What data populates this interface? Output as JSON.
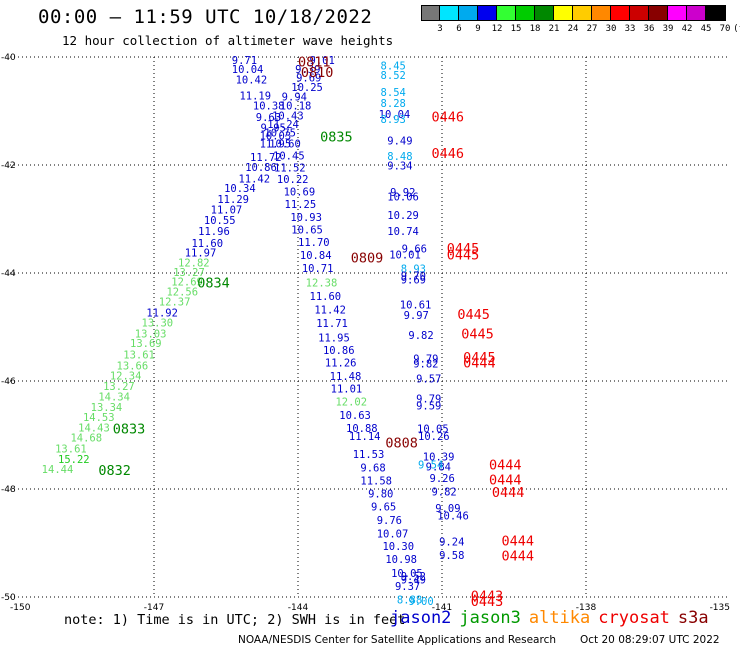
{
  "header": {
    "title": "00:00 – 11:59 UTC 10/18/2022",
    "subtitle": "12 hour collection of altimeter wave heights"
  },
  "colorbar": {
    "labels": [
      "3",
      "6",
      "9",
      "12",
      "15",
      "18",
      "21",
      "24",
      "27",
      "30",
      "33",
      "36",
      "39",
      "42",
      "45",
      "70",
      "(ft)"
    ],
    "colors": [
      "#777777",
      "#00e5ff",
      "#00aaee",
      "#0000ee",
      "#33ff33",
      "#00cc00",
      "#008800",
      "#ffff00",
      "#ffcc00",
      "#ff8800",
      "#ff0000",
      "#cc0000",
      "#880000",
      "#ff00ff",
      "#cc00cc",
      "#000000"
    ]
  },
  "chart_data": {
    "type": "scatter",
    "xlim": [
      -150,
      -135
    ],
    "ylim": [
      -50,
      -40
    ],
    "x_ticks": [
      "-150",
      "-147",
      "-144",
      "-141",
      "-138",
      "-135"
    ],
    "y_ticks": [
      "-40",
      "-42",
      "-44",
      "-46",
      "-48",
      "-50"
    ],
    "grid": true,
    "points": [
      {
        "x": -145.38,
        "y": -40.06,
        "t": "9.71",
        "c": "#0000cc"
      },
      {
        "x": -145.38,
        "y": -40.22,
        "t": "10.04",
        "c": "#0000cc"
      },
      {
        "x": -145.3,
        "y": -40.42,
        "t": "10.42",
        "c": "#0000cc"
      },
      {
        "x": -145.22,
        "y": -40.71,
        "t": "11.19",
        "c": "#0000cc"
      },
      {
        "x": -144.94,
        "y": -40.9,
        "t": "10.38",
        "c": "#0000cc"
      },
      {
        "x": -144.88,
        "y": -41.11,
        "t": "9.63",
        "c": "#0000cc"
      },
      {
        "x": -144.78,
        "y": -41.31,
        "t": "9.95",
        "c": "#0000cc"
      },
      {
        "x": -144.8,
        "y": -41.45,
        "t": "10.03",
        "c": "#0000cc"
      },
      {
        "x": -144.8,
        "y": -41.6,
        "t": "11.95",
        "c": "#0000cc"
      },
      {
        "x": -145.0,
        "y": -41.85,
        "t": "11.72",
        "c": "#0000cc"
      },
      {
        "x": -145.1,
        "y": -42.04,
        "t": "10.86",
        "c": "#0000cc"
      },
      {
        "x": -145.24,
        "y": -42.25,
        "t": "11.42",
        "c": "#0000cc"
      },
      {
        "x": -145.54,
        "y": -42.43,
        "t": "10.34",
        "c": "#0000cc"
      },
      {
        "x": -145.68,
        "y": -42.63,
        "t": "11.29",
        "c": "#0000cc"
      },
      {
        "x": -145.82,
        "y": -42.82,
        "t": "11.07",
        "c": "#0000cc"
      },
      {
        "x": -145.96,
        "y": -43.02,
        "t": "10.55",
        "c": "#0000cc"
      },
      {
        "x": -146.08,
        "y": -43.22,
        "t": "11.96",
        "c": "#0000cc"
      },
      {
        "x": -146.22,
        "y": -43.44,
        "t": "11.60",
        "c": "#0000cc"
      },
      {
        "x": -146.36,
        "y": -43.62,
        "t": "11.97",
        "c": "#0000cc"
      },
      {
        "x": -146.5,
        "y": -43.81,
        "t": "12.82",
        "c": "#66dd66"
      },
      {
        "x": -146.6,
        "y": -43.98,
        "t": "13.27",
        "c": "#66dd66"
      },
      {
        "x": -146.64,
        "y": -44.16,
        "t": "12.69",
        "c": "#66dd66"
      },
      {
        "x": -146.74,
        "y": -44.34,
        "t": "12.56",
        "c": "#66dd66"
      },
      {
        "x": -146.9,
        "y": -44.53,
        "t": "12.37",
        "c": "#66dd66"
      },
      {
        "x": -147.16,
        "y": -44.73,
        "t": "11.92",
        "c": "#0000cc"
      },
      {
        "x": -147.26,
        "y": -44.92,
        "t": "13.30",
        "c": "#66dd66"
      },
      {
        "x": -147.4,
        "y": -45.12,
        "t": "13.03",
        "c": "#66dd66"
      },
      {
        "x": -147.5,
        "y": -45.3,
        "t": "13.69",
        "c": "#66dd66"
      },
      {
        "x": -147.64,
        "y": -45.51,
        "t": "13.61",
        "c": "#66dd66"
      },
      {
        "x": -147.78,
        "y": -45.71,
        "t": "13.66",
        "c": "#66dd66"
      },
      {
        "x": -147.92,
        "y": -45.9,
        "t": "12.34",
        "c": "#66dd66"
      },
      {
        "x": -148.06,
        "y": -46.09,
        "t": "13.27",
        "c": "#66dd66"
      },
      {
        "x": -148.16,
        "y": -46.29,
        "t": "14.34",
        "c": "#66dd66"
      },
      {
        "x": -148.32,
        "y": -46.48,
        "t": "13.34",
        "c": "#66dd66"
      },
      {
        "x": -148.48,
        "y": -46.67,
        "t": "14.53",
        "c": "#66dd66"
      },
      {
        "x": -148.58,
        "y": -46.86,
        "t": "14.43",
        "c": "#66dd66"
      },
      {
        "x": -148.74,
        "y": -47.05,
        "t": "14.68",
        "c": "#66dd66"
      },
      {
        "x": -149.06,
        "y": -47.25,
        "t": "13.61",
        "c": "#66dd66"
      },
      {
        "x": -149.0,
        "y": -47.44,
        "t": "15.22",
        "c": "#22cc22"
      },
      {
        "x": -149.34,
        "y": -47.63,
        "t": "14.44",
        "c": "#66dd66"
      },
      {
        "x": -143.76,
        "y": -40.06,
        "t": "9.01",
        "c": "#0000cc"
      },
      {
        "x": -144.06,
        "y": -40.22,
        "t": "9.39",
        "c": "#0000cc"
      },
      {
        "x": -144.04,
        "y": -40.38,
        "t": "9.69",
        "c": "#0000cc"
      },
      {
        "x": -144.14,
        "y": -40.56,
        "t": "10.25",
        "c": "#0000cc"
      },
      {
        "x": -144.34,
        "y": -40.73,
        "t": "9.94",
        "c": "#0000cc"
      },
      {
        "x": -144.38,
        "y": -40.9,
        "t": "10.18",
        "c": "#0000cc"
      },
      {
        "x": -144.54,
        "y": -41.08,
        "t": "10.43",
        "c": "#0000cc"
      },
      {
        "x": -144.64,
        "y": -41.24,
        "t": "11.24",
        "c": "#0000cc"
      },
      {
        "x": -144.7,
        "y": -41.4,
        "t": "10.75",
        "c": "#0000cc"
      },
      {
        "x": -144.6,
        "y": -41.6,
        "t": "10.60",
        "c": "#0000cc"
      },
      {
        "x": -144.52,
        "y": -41.82,
        "t": "10.45",
        "c": "#0000cc"
      },
      {
        "x": -144.5,
        "y": -42.05,
        "t": "11.52",
        "c": "#0000cc"
      },
      {
        "x": -144.44,
        "y": -42.26,
        "t": "10.22",
        "c": "#0000cc"
      },
      {
        "x": -144.3,
        "y": -42.49,
        "t": "10.69",
        "c": "#0000cc"
      },
      {
        "x": -144.28,
        "y": -42.72,
        "t": "11.25",
        "c": "#0000cc"
      },
      {
        "x": -144.16,
        "y": -42.96,
        "t": "10.93",
        "c": "#0000cc"
      },
      {
        "x": -144.14,
        "y": -43.19,
        "t": "10.65",
        "c": "#0000cc"
      },
      {
        "x": -144.0,
        "y": -43.43,
        "t": "11.70",
        "c": "#0000cc"
      },
      {
        "x": -143.96,
        "y": -43.67,
        "t": "10.84",
        "c": "#0000cc"
      },
      {
        "x": -143.92,
        "y": -43.91,
        "t": "10.71",
        "c": "#0000cc"
      },
      {
        "x": -143.84,
        "y": -44.18,
        "t": "12.38",
        "c": "#66dd66"
      },
      {
        "x": -143.76,
        "y": -44.43,
        "t": "11.60",
        "c": "#0000cc"
      },
      {
        "x": -143.66,
        "y": -44.68,
        "t": "11.42",
        "c": "#0000cc"
      },
      {
        "x": -143.62,
        "y": -44.93,
        "t": "11.71",
        "c": "#0000cc"
      },
      {
        "x": -143.58,
        "y": -45.19,
        "t": "11.95",
        "c": "#0000cc"
      },
      {
        "x": -143.48,
        "y": -45.43,
        "t": "10.86",
        "c": "#0000cc"
      },
      {
        "x": -143.44,
        "y": -45.66,
        "t": "11.26",
        "c": "#0000cc"
      },
      {
        "x": -143.34,
        "y": -45.91,
        "t": "11.48",
        "c": "#0000cc"
      },
      {
        "x": -143.32,
        "y": -46.14,
        "t": "11.01",
        "c": "#0000cc"
      },
      {
        "x": -143.22,
        "y": -46.38,
        "t": "12.02",
        "c": "#66dd66"
      },
      {
        "x": -143.14,
        "y": -46.63,
        "t": "10.63",
        "c": "#0000cc"
      },
      {
        "x": -143.0,
        "y": -46.87,
        "t": "10.88",
        "c": "#0000cc"
      },
      {
        "x": -142.94,
        "y": -47.02,
        "t": "11.14",
        "c": "#0000cc"
      },
      {
        "x": -142.86,
        "y": -47.35,
        "t": "11.53",
        "c": "#0000cc"
      },
      {
        "x": -142.7,
        "y": -47.6,
        "t": "9.68",
        "c": "#0000cc"
      },
      {
        "x": -142.7,
        "y": -47.84,
        "t": "11.58",
        "c": "#0000cc"
      },
      {
        "x": -142.54,
        "y": -48.08,
        "t": "9.80",
        "c": "#0000cc"
      },
      {
        "x": -142.48,
        "y": -48.32,
        "t": "9.65",
        "c": "#0000cc"
      },
      {
        "x": -142.36,
        "y": -48.57,
        "t": "9.76",
        "c": "#0000cc"
      },
      {
        "x": -142.36,
        "y": -48.82,
        "t": "10.07",
        "c": "#0000cc"
      },
      {
        "x": -142.24,
        "y": -49.06,
        "t": "10.30",
        "c": "#0000cc"
      },
      {
        "x": -142.18,
        "y": -49.3,
        "t": "10.98",
        "c": "#0000cc"
      },
      {
        "x": -142.06,
        "y": -49.56,
        "t": "10.05",
        "c": "#0000cc"
      },
      {
        "x": -141.86,
        "y": -49.61,
        "t": "9.52",
        "c": "#0000cc"
      },
      {
        "x": -141.86,
        "y": -49.68,
        "t": "9.49",
        "c": "#0000cc"
      },
      {
        "x": -141.98,
        "y": -49.8,
        "t": "9.37",
        "c": "#0000cc"
      },
      {
        "x": -141.94,
        "y": -50.05,
        "t": "8.88",
        "c": "#00aaee"
      },
      {
        "x": -141.7,
        "y": -50.07,
        "t": "9.00",
        "c": "#00aaee"
      },
      {
        "x": -142.28,
        "y": -40.16,
        "t": "8.45",
        "c": "#00aaee"
      },
      {
        "x": -142.28,
        "y": -40.33,
        "t": "8.52",
        "c": "#00aaee"
      },
      {
        "x": -142.28,
        "y": -40.65,
        "t": "8.54",
        "c": "#00aaee"
      },
      {
        "x": -142.28,
        "y": -40.85,
        "t": "8.28",
        "c": "#00aaee"
      },
      {
        "x": -142.32,
        "y": -41.06,
        "t": "10.04",
        "c": "#0000cc"
      },
      {
        "x": -142.28,
        "y": -41.15,
        "t": "8.93",
        "c": "#00aaee"
      },
      {
        "x": -142.14,
        "y": -41.55,
        "t": "9.49",
        "c": "#0000cc"
      },
      {
        "x": -142.14,
        "y": -41.83,
        "t": "8.48",
        "c": "#00aaee"
      },
      {
        "x": -142.14,
        "y": -42.01,
        "t": "9.34",
        "c": "#0000cc"
      },
      {
        "x": -142.08,
        "y": -42.5,
        "t": "9.92",
        "c": "#0000cc"
      },
      {
        "x": -142.14,
        "y": -42.58,
        "t": "10.06",
        "c": "#0000cc"
      },
      {
        "x": -142.14,
        "y": -42.93,
        "t": "10.29",
        "c": "#0000cc"
      },
      {
        "x": -142.14,
        "y": -43.22,
        "t": "10.74",
        "c": "#0000cc"
      },
      {
        "x": -141.84,
        "y": -43.55,
        "t": "9.66",
        "c": "#0000cc"
      },
      {
        "x": -142.1,
        "y": -43.66,
        "t": "10.01",
        "c": "#0000cc"
      },
      {
        "x": -141.86,
        "y": -43.92,
        "t": "8.93",
        "c": "#00aaee"
      },
      {
        "x": -141.86,
        "y": -44.05,
        "t": "9.70",
        "c": "#0000cc"
      },
      {
        "x": -141.86,
        "y": -44.12,
        "t": "9.69",
        "c": "#0000cc"
      },
      {
        "x": -141.88,
        "y": -44.58,
        "t": "10.61",
        "c": "#0000cc"
      },
      {
        "x": -141.8,
        "y": -44.78,
        "t": "9.97",
        "c": "#0000cc"
      },
      {
        "x": -141.7,
        "y": -45.15,
        "t": "9.82",
        "c": "#0000cc"
      },
      {
        "x": -141.6,
        "y": -45.58,
        "t": "9.79",
        "c": "#0000cc"
      },
      {
        "x": -141.6,
        "y": -45.68,
        "t": "9.82",
        "c": "#0000cc"
      },
      {
        "x": -141.54,
        "y": -45.95,
        "t": "9.57",
        "c": "#0000cc"
      },
      {
        "x": -141.54,
        "y": -46.32,
        "t": "9.79",
        "c": "#0000cc"
      },
      {
        "x": -141.54,
        "y": -46.45,
        "t": "9.59",
        "c": "#0000cc"
      },
      {
        "x": -141.52,
        "y": -46.88,
        "t": "10.05",
        "c": "#0000cc"
      },
      {
        "x": -141.5,
        "y": -47.02,
        "t": "10.26",
        "c": "#0000cc"
      },
      {
        "x": -141.4,
        "y": -47.4,
        "t": "10.39",
        "c": "#0000cc"
      },
      {
        "x": -141.34,
        "y": -47.58,
        "t": "9.84",
        "c": "#0000cc"
      },
      {
        "x": -141.5,
        "y": -47.55,
        "t": "9.54",
        "c": "#00aaee"
      },
      {
        "x": -141.26,
        "y": -47.8,
        "t": "9.26",
        "c": "#0000cc"
      },
      {
        "x": -141.22,
        "y": -48.05,
        "t": "9.82",
        "c": "#0000cc"
      },
      {
        "x": -141.14,
        "y": -48.35,
        "t": "9.09",
        "c": "#0000cc"
      },
      {
        "x": -141.1,
        "y": -48.49,
        "t": "10.46",
        "c": "#0000cc"
      },
      {
        "x": -141.06,
        "y": -48.97,
        "t": "9.24",
        "c": "#0000cc"
      },
      {
        "x": -141.06,
        "y": -49.22,
        "t": "9.58",
        "c": "#0000cc"
      }
    ],
    "tags": [
      {
        "x": -144.0,
        "y": -40.08,
        "t": "0811",
        "c": "#880000"
      },
      {
        "x": -143.94,
        "y": -40.28,
        "t": "0810",
        "c": "#880000"
      },
      {
        "x": -143.54,
        "y": -41.47,
        "t": "0835",
        "c": "#008800"
      },
      {
        "x": -146.1,
        "y": -44.18,
        "t": "0834",
        "c": "#008800"
      },
      {
        "x": -147.86,
        "y": -46.88,
        "t": "0833",
        "c": "#008800"
      },
      {
        "x": -148.16,
        "y": -47.65,
        "t": "0832",
        "c": "#008800"
      },
      {
        "x": -142.9,
        "y": -43.71,
        "t": "0809",
        "c": "#880000"
      },
      {
        "x": -142.18,
        "y": -47.14,
        "t": "0808",
        "c": "#880000"
      },
      {
        "x": -141.22,
        "y": -41.1,
        "t": "0446",
        "c": "#ee0000"
      },
      {
        "x": -141.22,
        "y": -41.78,
        "t": "0446",
        "c": "#ee0000"
      },
      {
        "x": -140.9,
        "y": -43.54,
        "t": "0445",
        "c": "#ee0000"
      },
      {
        "x": -140.9,
        "y": -43.66,
        "t": "0445",
        "c": "#ee0000"
      },
      {
        "x": -140.68,
        "y": -44.76,
        "t": "0445",
        "c": "#ee0000"
      },
      {
        "x": -140.6,
        "y": -45.12,
        "t": "0445",
        "c": "#ee0000"
      },
      {
        "x": -140.56,
        "y": -45.56,
        "t": "0445",
        "c": "#ee0000"
      },
      {
        "x": -140.56,
        "y": -45.66,
        "t": "0444",
        "c": "#ee0000"
      },
      {
        "x": -140.02,
        "y": -47.55,
        "t": "0444",
        "c": "#ee0000"
      },
      {
        "x": -140.02,
        "y": -47.82,
        "t": "0444",
        "c": "#ee0000"
      },
      {
        "x": -139.96,
        "y": -48.06,
        "t": "0444",
        "c": "#ee0000"
      },
      {
        "x": -139.76,
        "y": -48.95,
        "t": "0444",
        "c": "#ee0000"
      },
      {
        "x": -139.76,
        "y": -49.23,
        "t": "0444",
        "c": "#ee0000"
      },
      {
        "x": -140.4,
        "y": -49.97,
        "t": "0443",
        "c": "#ee0000"
      },
      {
        "x": -140.4,
        "y": -50.07,
        "t": "0443",
        "c": "#ee0000"
      }
    ]
  },
  "footer": {
    "note": "note: 1) Time is in UTC; 2) SWH is in feet",
    "legend": [
      {
        "label": "jason2",
        "color": "#0000cc"
      },
      {
        "label": "jason3",
        "color": "#009900"
      },
      {
        "label": "altika",
        "color": "#ff8800"
      },
      {
        "label": "cryosat",
        "color": "#ee0000"
      },
      {
        "label": "s3a",
        "color": "#880000"
      }
    ],
    "credit": "NOAA/NESDIS Center for Satellite Applications and Research",
    "generated": "Oct 20 08:29:07 UTC 2022"
  }
}
